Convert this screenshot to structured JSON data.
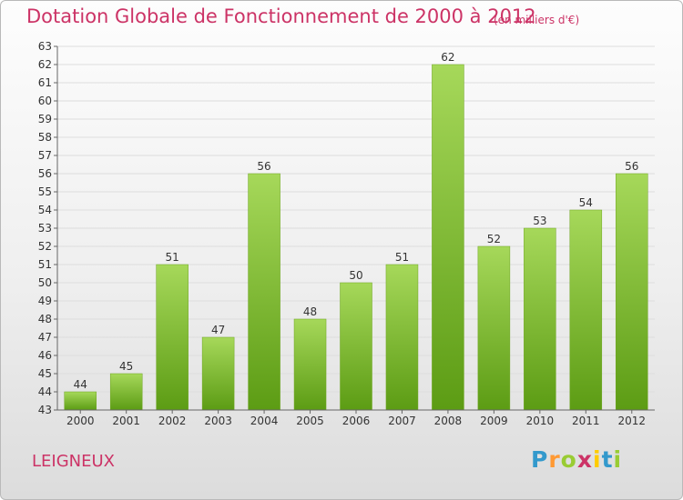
{
  "header": {
    "title": "Dotation Globale de Fonctionnement de 2000 à 2012",
    "subtitle": "(en milliers d'€)"
  },
  "footer": {
    "commune": "LEIGNEUX",
    "logo_letters": [
      "P",
      "r",
      "o",
      "x",
      "i",
      "t",
      "i"
    ],
    "logo_colors": [
      "#3399cc",
      "#ff9933",
      "#99cc33",
      "#cc3366",
      "#ffcc00",
      "#3399cc",
      "#99cc33"
    ]
  },
  "colors": {
    "title": "#cc3366",
    "bar_top": "#a6d85a",
    "bar_bottom": "#5c9c14",
    "grid": "#dddddd",
    "axis": "#666666"
  },
  "chart_data": {
    "type": "bar",
    "categories": [
      "2000",
      "2001",
      "2002",
      "2003",
      "2004",
      "2005",
      "2006",
      "2007",
      "2008",
      "2009",
      "2010",
      "2011",
      "2012"
    ],
    "values": [
      44,
      45,
      51,
      47,
      56,
      48,
      50,
      51,
      62,
      52,
      53,
      54,
      56
    ],
    "title": "Dotation Globale de Fonctionnement de 2000 à 2012",
    "subtitle": "(en milliers d'€)",
    "ylim": [
      43,
      63
    ],
    "ytick_step": 1,
    "grid": true,
    "data_labels": true
  }
}
